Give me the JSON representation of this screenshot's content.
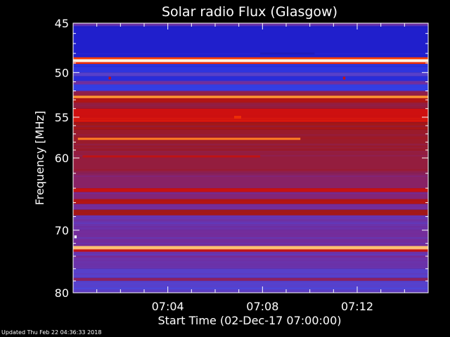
{
  "chart_data": {
    "type": "heatmap",
    "title": "Solar radio Flux (Glasgow)",
    "xlabel": "Start Time (02-Dec-17 07:00:00)",
    "ylabel": "Frequency [MHz]",
    "x_range_minutes": [
      0,
      15
    ],
    "x_tick_minutes": [
      4,
      8,
      12
    ],
    "x_tick_labels": [
      "07:04",
      "07:08",
      "07:12"
    ],
    "y_range_mhz": [
      45,
      80
    ],
    "y_ticks": [
      45,
      50,
      55,
      60,
      70,
      80
    ],
    "y_tick_labels": [
      "45",
      "50",
      "55",
      "60",
      "70",
      "80"
    ],
    "y_scale": "log",
    "colormap": [
      "#1a0a6e",
      "#2020d0",
      "#4050f0",
      "#7a2890",
      "#a01818",
      "#d01010",
      "#ff4000",
      "#ffb040",
      "#ffffff"
    ],
    "bands": [
      {
        "f_start": 45.0,
        "f_end": 45.2,
        "level": 0.35
      },
      {
        "f_start": 45.2,
        "f_end": 48.4,
        "level": 0.12
      },
      {
        "f_start": 48.4,
        "f_end": 48.6,
        "level": 0.75
      },
      {
        "f_start": 48.6,
        "f_end": 48.9,
        "level": 0.98
      },
      {
        "f_start": 48.9,
        "f_end": 49.1,
        "level": 0.7
      },
      {
        "f_start": 49.1,
        "f_end": 50.0,
        "level": 0.18
      },
      {
        "f_start": 50.0,
        "f_end": 50.4,
        "level": 0.3
      },
      {
        "f_start": 50.4,
        "f_end": 50.9,
        "level": 0.16
      },
      {
        "f_start": 50.9,
        "f_end": 51.3,
        "level": 0.34
      },
      {
        "f_start": 51.3,
        "f_end": 52.0,
        "level": 0.2
      },
      {
        "f_start": 52.0,
        "f_end": 52.5,
        "level": 0.45
      },
      {
        "f_start": 52.5,
        "f_end": 52.8,
        "level": 0.85
      },
      {
        "f_start": 52.8,
        "f_end": 53.3,
        "level": 0.55
      },
      {
        "f_start": 53.3,
        "f_end": 54.0,
        "level": 0.46
      },
      {
        "f_start": 54.0,
        "f_end": 55.6,
        "level": 0.62
      },
      {
        "f_start": 55.6,
        "f_end": 56.5,
        "level": 0.5
      },
      {
        "f_start": 56.5,
        "f_end": 59.0,
        "level": 0.48
      },
      {
        "f_start": 59.0,
        "f_end": 62.0,
        "level": 0.46
      },
      {
        "f_start": 62.0,
        "f_end": 64.0,
        "level": 0.42
      },
      {
        "f_start": 64.0,
        "f_end": 64.5,
        "level": 0.6
      },
      {
        "f_start": 64.5,
        "f_end": 65.5,
        "level": 0.4
      },
      {
        "f_start": 65.5,
        "f_end": 66.2,
        "level": 0.55
      },
      {
        "f_start": 66.2,
        "f_end": 67.0,
        "level": 0.36
      },
      {
        "f_start": 67.0,
        "f_end": 67.8,
        "level": 0.5
      },
      {
        "f_start": 67.8,
        "f_end": 70.0,
        "level": 0.34
      },
      {
        "f_start": 70.0,
        "f_end": 72.4,
        "level": 0.36
      },
      {
        "f_start": 72.4,
        "f_end": 72.8,
        "level": 0.9
      },
      {
        "f_start": 72.8,
        "f_end": 73.2,
        "level": 0.6
      },
      {
        "f_start": 73.2,
        "f_end": 76.0,
        "level": 0.34
      },
      {
        "f_start": 76.0,
        "f_end": 77.5,
        "level": 0.3
      },
      {
        "f_start": 77.5,
        "f_end": 78.0,
        "level": 0.42
      },
      {
        "f_start": 78.0,
        "f_end": 80.0,
        "level": 0.3
      }
    ],
    "features": [
      {
        "f": 57.6,
        "t_start": 0.2,
        "t_end": 9.6,
        "level": 0.82
      },
      {
        "f": 59.8,
        "t_start": 0.4,
        "t_end": 7.9,
        "level": 0.58
      },
      {
        "f": 48.0,
        "t_start": 7.9,
        "t_end": 10.2,
        "level": 0.1
      },
      {
        "f": 55.0,
        "t_start": 6.8,
        "t_end": 7.1,
        "level": 0.7
      },
      {
        "f": 50.6,
        "t_start": 1.5,
        "t_end": 1.6,
        "level": 0.6
      },
      {
        "f": 50.6,
        "t_start": 11.4,
        "t_end": 11.5,
        "level": 0.6
      },
      {
        "f": 71.0,
        "t_start": 0.05,
        "t_end": 0.15,
        "level": 1.0
      }
    ]
  },
  "footer": {
    "updated_text": "Updated Thu Feb 22 04:36:33 2018"
  }
}
